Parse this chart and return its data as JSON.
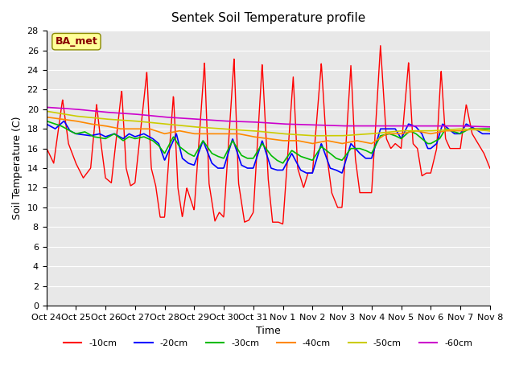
{
  "title": "Sentek Soil Temperature profile",
  "xlabel": "Time",
  "ylabel": "Soil Temperature (C)",
  "ylim": [
    0,
    28
  ],
  "yticks": [
    0,
    2,
    4,
    6,
    8,
    10,
    12,
    14,
    16,
    18,
    20,
    22,
    24,
    26,
    28
  ],
  "x_labels": [
    "Oct 24",
    "Oct 25",
    "Oct 26",
    "Oct 27",
    "Oct 28",
    "Oct 29",
    "Oct 30",
    "Oct 31",
    "Nov 1",
    "Nov 2",
    "Nov 3",
    "Nov 4",
    "Nov 5",
    "Nov 6",
    "Nov 7",
    "Nov 8"
  ],
  "colors": {
    "-10cm": "#ff0000",
    "-20cm": "#0000ff",
    "-30cm": "#00bb00",
    "-40cm": "#ff8800",
    "-50cm": "#cccc00",
    "-60cm": "#cc00cc"
  },
  "bg_color": "#e8e8e8",
  "annotation_text": "BA_met",
  "annotation_color": "#880000",
  "annotation_bg": "#ffff99"
}
